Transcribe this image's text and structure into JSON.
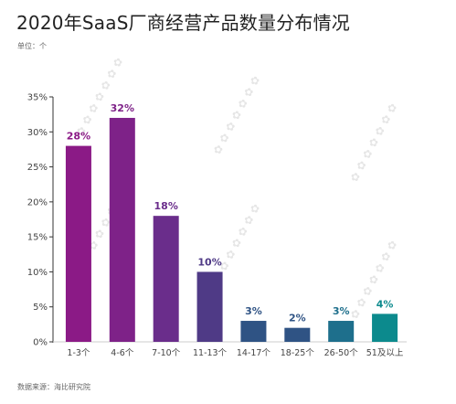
{
  "header": {
    "title": "2020年SaaS厂商经营产品数量分布情况",
    "unit": "单位：个"
  },
  "footer": {
    "source": "数据来源：海比研究院"
  },
  "chart_data": {
    "type": "bar",
    "categories": [
      "1-3个",
      "4-6个",
      "7-10个",
      "11-13个",
      "14-17个",
      "18-25个",
      "26-50个",
      "51及以上"
    ],
    "values": [
      28,
      32,
      18,
      10,
      3,
      2,
      3,
      4
    ],
    "data_labels": [
      "28%",
      "32%",
      "18%",
      "10%",
      "3%",
      "2%",
      "3%",
      "4%"
    ],
    "colors": [
      "#8b1a86",
      "#7e2288",
      "#6a2d8b",
      "#4f3a86",
      "#2f5384",
      "#2f5384",
      "#1e6f8c",
      "#0c8a8d"
    ],
    "y_ticks": [
      "0%",
      "5%",
      "10%",
      "15%",
      "20%",
      "25%",
      "30%",
      "35%"
    ],
    "ylim": [
      0,
      35
    ],
    "grid": false,
    "legend": "none"
  }
}
